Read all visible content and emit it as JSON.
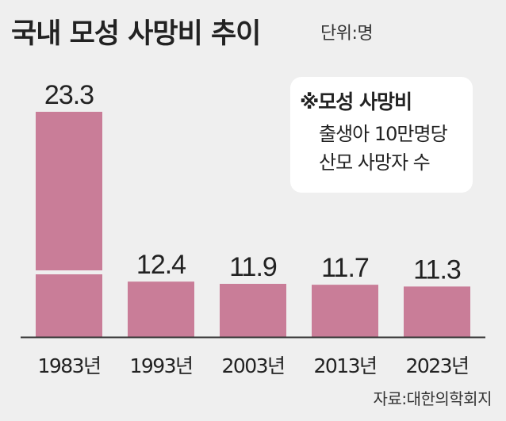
{
  "header": {
    "title": "국내 모성 사망비 추이",
    "unit": "단위:명"
  },
  "note": {
    "title": "※모성 사망비",
    "line1": "출생아 10만명당",
    "line2": "산모 사망자 수"
  },
  "source": "자료:대한의학회지",
  "colors": {
    "bar": "#c97d98",
    "background": "#efefef",
    "axis": "#333333"
  },
  "chart_data": {
    "type": "bar",
    "categories": [
      "1983년",
      "1993년",
      "2003년",
      "2013년",
      "2023년"
    ],
    "values": [
      23.3,
      12.4,
      11.9,
      11.7,
      11.3
    ],
    "value_labels": [
      "23.3",
      "12.4",
      "11.9",
      "11.7",
      "11.3"
    ],
    "title": "국내 모성 사망비 추이",
    "xlabel": "",
    "ylabel": "",
    "ylim": [
      0,
      23.3
    ],
    "axis_break": true,
    "grid": false,
    "legend": "none"
  }
}
